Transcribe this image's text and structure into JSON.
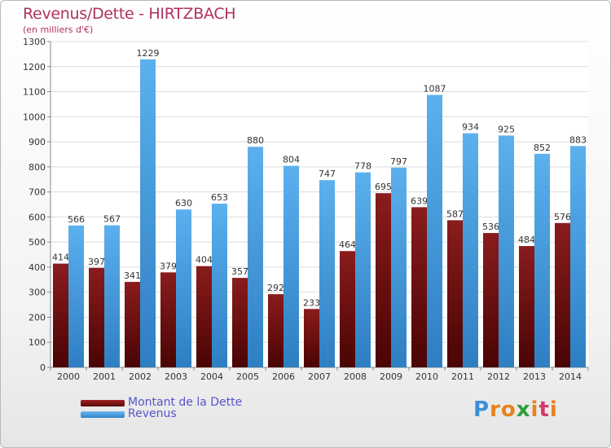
{
  "chart_data": {
    "type": "bar",
    "title": "Revenus/Dette - HIRTZBACH",
    "subtitle": "(en milliers d'€)",
    "xlabel": "",
    "ylabel": "",
    "ylim": [
      0,
      1300
    ],
    "yticks": [
      0,
      100,
      200,
      300,
      400,
      500,
      600,
      700,
      800,
      900,
      1000,
      1100,
      1200,
      1300
    ],
    "grid": true,
    "categories": [
      "2000",
      "2001",
      "2002",
      "2003",
      "2004",
      "2005",
      "2006",
      "2007",
      "2008",
      "2009",
      "2010",
      "2011",
      "2012",
      "2013",
      "2014"
    ],
    "series": [
      {
        "name": "Montant de la Dette",
        "color": "#7a1010",
        "values": [
          414,
          397,
          341,
          379,
          404,
          357,
          292,
          233,
          464,
          695,
          639,
          587,
          536,
          484,
          576
        ]
      },
      {
        "name": "Revenus",
        "color": "#4aa3e6",
        "values": [
          566,
          567,
          1229,
          630,
          653,
          880,
          804,
          747,
          778,
          797,
          1087,
          934,
          925,
          852,
          883
        ]
      }
    ],
    "legend_position": "bottom-left"
  },
  "logo": {
    "letters": [
      "P",
      "r",
      "o",
      "x",
      "i",
      "t",
      "i"
    ],
    "colors": [
      "#3a8fd8",
      "#e8821e",
      "#e8821e",
      "#2f9e3a",
      "#e8821e",
      "#d43a6a",
      "#e8821e"
    ]
  }
}
